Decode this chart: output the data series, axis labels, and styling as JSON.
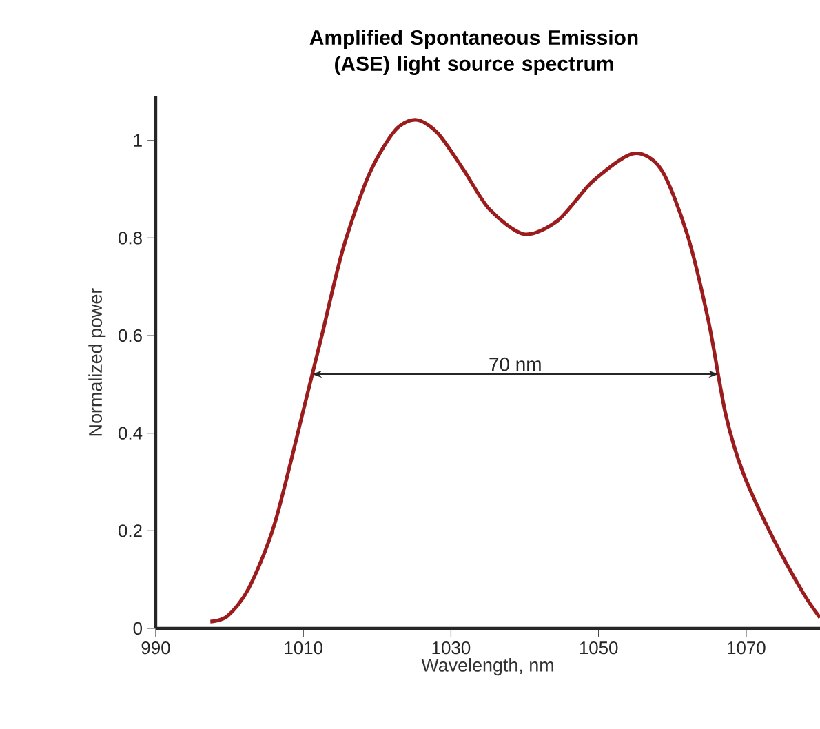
{
  "chart_data": {
    "type": "line",
    "title": "Amplified Spontaneous Emission (ASE) light source spectrum",
    "xlabel": "Wavelength, nm",
    "ylabel": "Normalized power",
    "xlim": [
      990,
      1080
    ],
    "xticks": [
      990,
      1010,
      1030,
      1050,
      1070
    ],
    "ylim": [
      0,
      1.09
    ],
    "yticks": [
      0,
      0.2,
      0.4,
      0.6,
      0.8,
      1
    ],
    "marker": "none",
    "line_style": "solid",
    "annotations": [
      "70 nm"
    ],
    "series": [
      {
        "color": "#9b1c1c",
        "x": [
          997.4,
          999.7,
          1002.6,
          1006.1,
          1010.2,
          1012.5,
          1015.4,
          1018.9,
          1022.4,
          1025.3,
          1028.2,
          1031.7,
          1035.2,
          1039.9,
          1044.5,
          1049.2,
          1054.7,
          1058.5,
          1062.0,
          1064.9,
          1067.2,
          1069.6,
          1073.6,
          1077.7,
          1080
        ],
        "values": [
          0.014,
          0.025,
          0.082,
          0.214,
          0.459,
          0.6,
          0.779,
          0.93,
          1.02,
          1.042,
          1.015,
          0.94,
          0.859,
          0.808,
          0.836,
          0.916,
          0.973,
          0.94,
          0.808,
          0.629,
          0.44,
          0.318,
          0.186,
          0.073,
          0.022
        ]
      }
    ]
  }
}
